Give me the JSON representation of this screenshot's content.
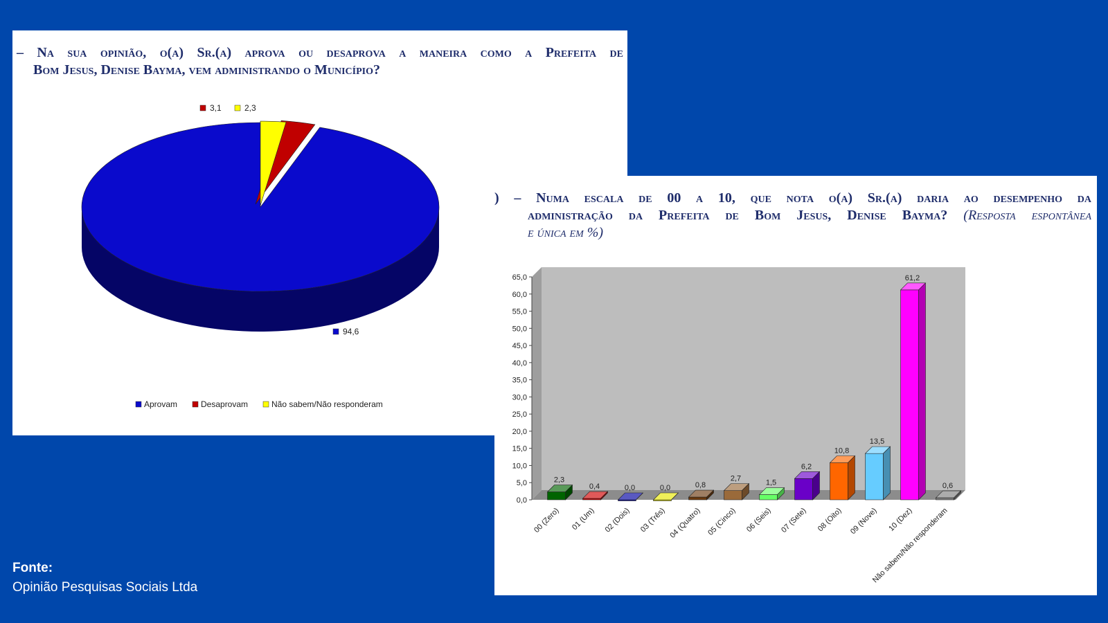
{
  "pie_card": {
    "title_line1": "– Na sua opinião, o(a) Sr.(a) aprova ou desaprova a maneira como a Prefeita de",
    "title_line2": "Bom Jesus, Denise Bayma, vem administrando o Município?"
  },
  "bar_card": {
    "title_line1": ") – Numa escala de 00 a 10, que nota o(a) Sr.(a) daria ao desempenho da",
    "title_line2a": "administração da Prefeita de Bom Jesus, Denise Bayma? ",
    "title_line2b": "(Resposta espontânea",
    "title_line3": "e única em %)"
  },
  "source": {
    "label": "Fonte:",
    "text": "Opinião Pesquisas Sociais Ltda"
  },
  "chart_data": [
    {
      "type": "pie",
      "categories": [
        "Aprovam",
        "Desaprovam",
        "Não sabem/Não responderam"
      ],
      "values": [
        94.6,
        3.1,
        2.3
      ],
      "value_labels": [
        "94,6",
        "3,1",
        "2,3"
      ],
      "colors": [
        "#0A0ACC",
        "#C00000",
        "#FFFF00"
      ],
      "legend": "bottom"
    },
    {
      "type": "bar",
      "categories": [
        "00 (Zero)",
        "01 (Um)",
        "02 (Dois)",
        "03 (Três)",
        "04 (Quatro)",
        "05 (Cinco)",
        "06 (Seis)",
        "07 (Sete)",
        "08 (Oito)",
        "09 (Nove)",
        "10 (Dez)",
        "Não sabem/Não responderam"
      ],
      "values": [
        2.3,
        0.4,
        0.0,
        0.0,
        0.8,
        2.7,
        1.5,
        6.2,
        10.8,
        13.5,
        61.2,
        0.6
      ],
      "value_labels": [
        "2,3",
        "0,4",
        "0,0",
        "0,0",
        "0,8",
        "2,7",
        "1,5",
        "6,2",
        "10,8",
        "13,5",
        "61,2",
        "0,6"
      ],
      "colors": [
        "#006400",
        "#D00000",
        "#0000A0",
        "#E8E800",
        "#6B3A10",
        "#9A6A3A",
        "#66FF66",
        "#6A00C8",
        "#FF6600",
        "#66CCFF",
        "#FF00FF",
        "#808080"
      ],
      "ylim": [
        0,
        65
      ],
      "y_ticks": [
        "0,0",
        "5,0",
        "10,0",
        "15,0",
        "20,0",
        "25,0",
        "30,0",
        "35,0",
        "40,0",
        "45,0",
        "50,0",
        "55,0",
        "60,0",
        "65,0"
      ],
      "grid": false
    }
  ]
}
